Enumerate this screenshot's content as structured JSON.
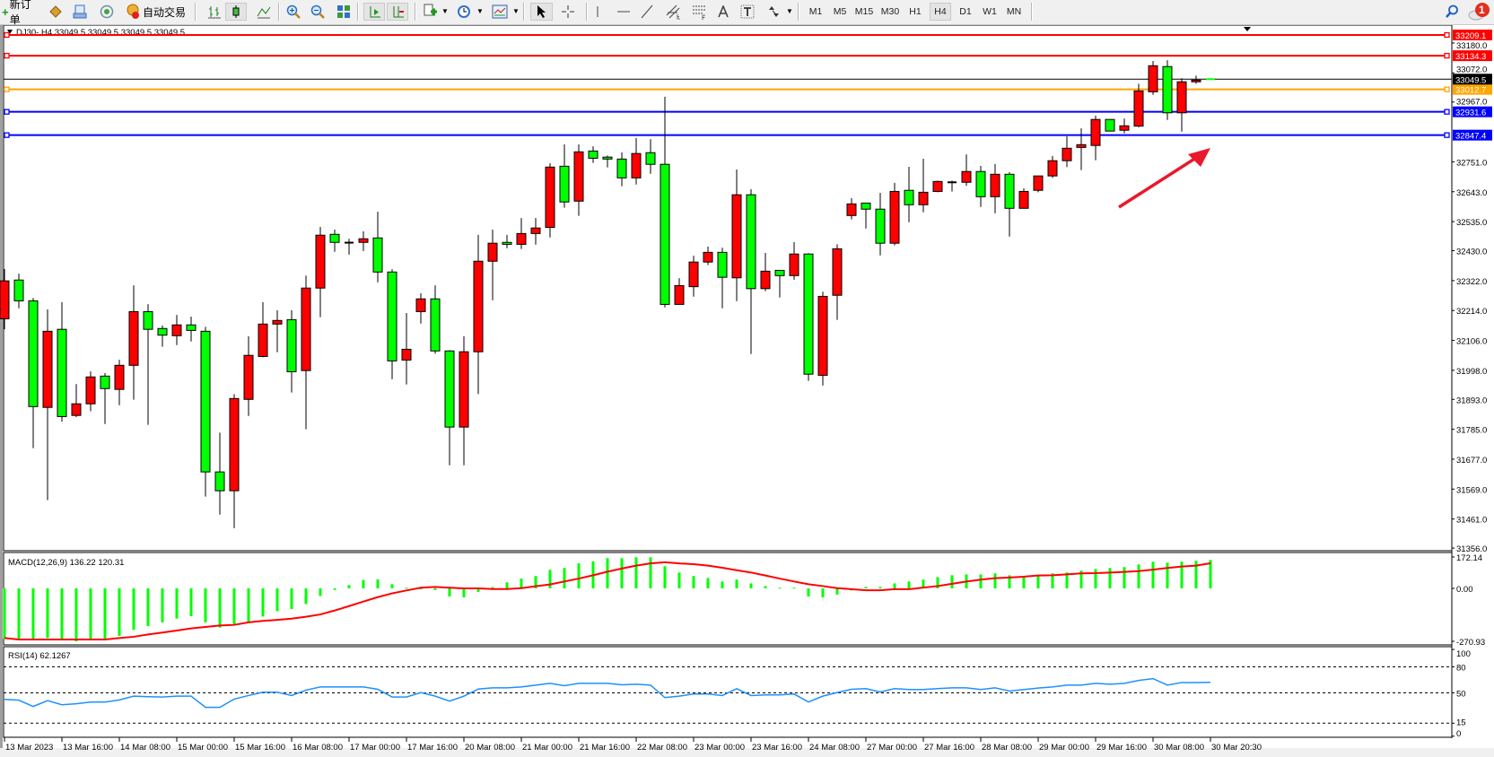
{
  "toolbar": {
    "new_order": "新订单",
    "auto_trading": "自动交易",
    "periods": [
      "M1",
      "M5",
      "M15",
      "M30",
      "H1",
      "H4",
      "D1",
      "W1",
      "MN"
    ],
    "active_period": "H4",
    "notification_count": "1",
    "icons": [
      "new-order-icon",
      "expert-diamond-icon",
      "terminal-icon",
      "signals-icon",
      "auto-trading-icon",
      "bar-chart-icon",
      "candlestick-icon",
      "line-chart-icon",
      "zoom-in-icon",
      "zoom-out-icon",
      "tile-windows-icon",
      "chart-shift-icon",
      "autoscroll-icon",
      "indicators-icon",
      "periods-clock-icon",
      "templates-icon",
      "cursor-icon",
      "crosshair-icon",
      "vertical-line-icon",
      "horizontal-line-icon",
      "trendline-icon",
      "channel-icon",
      "fibonacci-icon",
      "text-icon",
      "text-label-icon",
      "arrows-icon",
      "search-icon",
      "notification-icon"
    ]
  },
  "chart": {
    "title": "DJ30-,H4  33049.5 33049.5 33049.5 33049.5",
    "colors": {
      "bull": "#ff0000",
      "bear": "#00ff00",
      "macd_hist": "#00ff00",
      "macd_signal": "#ff0000",
      "rsi": "#1e90ff",
      "annotation_arrow": "#e8192c"
    }
  },
  "chart_data": [
    {
      "type": "candlestick",
      "symbol": "DJ30-",
      "timeframe": "H4",
      "ylim": [
        31356.0,
        33209.1
      ],
      "yticks": [
        "33180.0",
        "33072.0",
        "32967.0",
        "32751.0",
        "32643.0",
        "32535.0",
        "32430.0",
        "32322.0",
        "32214.0",
        "32106.0",
        "31998.0",
        "31893.0",
        "31785.0",
        "31677.0",
        "31569.0",
        "31461.0",
        "31356.0"
      ],
      "xticks": [
        "13 Mar 2023",
        "13 Mar 16:00",
        "14 Mar 08:00",
        "15 Mar 00:00",
        "15 Mar 16:00",
        "16 Mar 08:00",
        "17 Mar 00:00",
        "17 Mar 16:00",
        "20 Mar 08:00",
        "21 Mar 00:00",
        "21 Mar 16:00",
        "22 Mar 08:00",
        "23 Mar 00:00",
        "23 Mar 16:00",
        "24 Mar 08:00",
        "27 Mar 00:00",
        "27 Mar 16:00",
        "28 Mar 08:00",
        "29 Mar 00:00",
        "29 Mar 16:00",
        "30 Mar 08:00",
        "30 Mar 20:30"
      ],
      "current_price": "33049.5",
      "hlines": [
        {
          "price": "33209.1",
          "color": "#ff0000"
        },
        {
          "price": "33134.3",
          "color": "#ff0000"
        },
        {
          "price": "33012.7",
          "color": "#ffa500"
        },
        {
          "price": "32931.6",
          "color": "#0000ff"
        },
        {
          "price": "32847.4",
          "color": "#0000ff"
        }
      ],
      "ohlc": [
        [
          32184,
          32364,
          32146,
          32321
        ],
        [
          32324,
          32347,
          32222,
          32249
        ],
        [
          32249,
          32259,
          31717,
          31867
        ],
        [
          31864,
          32218,
          31529,
          32139
        ],
        [
          32146,
          32244,
          31812,
          31831
        ],
        [
          31835,
          31948,
          31829,
          31877
        ],
        [
          31877,
          31994,
          31850,
          31974
        ],
        [
          31977,
          31988,
          31804,
          31932
        ],
        [
          31929,
          32036,
          31872,
          32016
        ],
        [
          32016,
          32305,
          31892,
          32210
        ],
        [
          32210,
          32237,
          31801,
          32146
        ],
        [
          32149,
          32160,
          32083,
          32125
        ],
        [
          32123,
          32198,
          32089,
          32162
        ],
        [
          32162,
          32192,
          32102,
          32142
        ],
        [
          32139,
          32155,
          31542,
          31631
        ],
        [
          31631,
          31773,
          31477,
          31563
        ],
        [
          31563,
          31912,
          31428,
          31896
        ],
        [
          31893,
          32121,
          31833,
          32052
        ],
        [
          32048,
          32244,
          32045,
          32165
        ],
        [
          32165,
          32215,
          32063,
          32178
        ],
        [
          32181,
          32215,
          31918,
          31993
        ],
        [
          31997,
          32340,
          31785,
          32295
        ],
        [
          32295,
          32516,
          32190,
          32486
        ],
        [
          32489,
          32506,
          32426,
          32460
        ],
        [
          32459,
          32473,
          32416,
          32459
        ],
        [
          32460,
          32500,
          32429,
          32473
        ],
        [
          32476,
          32571,
          32316,
          32353
        ],
        [
          32353,
          32363,
          31966,
          32032
        ],
        [
          32035,
          32205,
          31947,
          32074
        ],
        [
          32210,
          32276,
          32167,
          32256
        ],
        [
          32256,
          32305,
          32058,
          32068
        ],
        [
          32068,
          32071,
          31655,
          31793
        ],
        [
          31793,
          32121,
          31655,
          32065
        ],
        [
          32065,
          32487,
          31912,
          32392
        ],
        [
          32392,
          32506,
          32251,
          32457
        ],
        [
          32460,
          32487,
          32439,
          32453
        ],
        [
          32453,
          32548,
          32436,
          32492
        ],
        [
          32492,
          32548,
          32452,
          32512
        ],
        [
          32514,
          32746,
          32478,
          32732
        ],
        [
          32735,
          32814,
          32585,
          32606
        ],
        [
          32609,
          32814,
          32556,
          32787
        ],
        [
          32790,
          32807,
          32747,
          32764
        ],
        [
          32768,
          32774,
          32731,
          32761
        ],
        [
          32761,
          32785,
          32663,
          32693
        ],
        [
          32693,
          32837,
          32669,
          32781
        ],
        [
          32784,
          32833,
          32708,
          32742
        ],
        [
          32742,
          32986,
          32225,
          32236
        ],
        [
          32236,
          32331,
          32236,
          32304
        ],
        [
          32300,
          32412,
          32264,
          32389
        ],
        [
          32389,
          32445,
          32378,
          32424
        ],
        [
          32424,
          32441,
          32222,
          32334
        ],
        [
          32332,
          32723,
          32248,
          32632
        ],
        [
          32632,
          32652,
          32057,
          32293
        ],
        [
          32293,
          32422,
          32284,
          32356
        ],
        [
          32359,
          32359,
          32261,
          32340
        ],
        [
          32340,
          32461,
          32325,
          32418
        ],
        [
          32418,
          32421,
          31960,
          31984
        ],
        [
          31980,
          32282,
          31943,
          32265
        ],
        [
          32269,
          32453,
          32180,
          32437
        ],
        [
          32557,
          32620,
          32543,
          32599
        ],
        [
          32602,
          32602,
          32510,
          32580
        ],
        [
          32580,
          32639,
          32413,
          32457
        ],
        [
          32457,
          32675,
          32449,
          32644
        ],
        [
          32648,
          32733,
          32533,
          32596
        ],
        [
          32596,
          32762,
          32569,
          32641
        ],
        [
          32644,
          32683,
          32641,
          32680
        ],
        [
          32677,
          32683,
          32644,
          32677
        ],
        [
          32677,
          32778,
          32664,
          32716
        ],
        [
          32716,
          32736,
          32588,
          32625
        ],
        [
          32625,
          32743,
          32565,
          32706
        ],
        [
          32706,
          32714,
          32481,
          32583
        ],
        [
          32583,
          32655,
          32583,
          32644
        ],
        [
          32648,
          32700,
          32641,
          32700
        ],
        [
          32700,
          32772,
          32693,
          32755
        ],
        [
          32755,
          32843,
          32732,
          32800
        ],
        [
          32803,
          32872,
          32721,
          32813
        ],
        [
          32810,
          32918,
          32757,
          32904
        ],
        [
          32904,
          32904,
          32862,
          32862
        ],
        [
          32865,
          32907,
          32854,
          32881
        ],
        [
          32880,
          33033,
          32876,
          33007
        ],
        [
          33004,
          33115,
          32993,
          33098
        ],
        [
          33095,
          33118,
          32902,
          32928
        ],
        [
          32928,
          33053,
          32860,
          33040
        ],
        [
          33040,
          33062,
          33033,
          33046
        ],
        [
          33049.5,
          33049.5,
          33049.5,
          33049.5
        ]
      ]
    },
    {
      "type": "bar+line",
      "title": "MACD(12,26,9) 136.22 120.31",
      "ylim": [
        -270.93,
        172.14
      ],
      "yticks": [
        "172.14",
        "0.00",
        "-270.93"
      ],
      "histogram": [
        -242,
        -242,
        -242,
        -238,
        -242,
        -254,
        -242,
        -242,
        -228,
        -199,
        -181,
        -163,
        -145,
        -133,
        -163,
        -188,
        -171,
        -162,
        -135,
        -109,
        -99,
        -75,
        -36,
        -7,
        16,
        40,
        43,
        20,
        3,
        0,
        -8,
        -39,
        -43,
        -17,
        6,
        29,
        47,
        59,
        89,
        98,
        120,
        130,
        145,
        145,
        149,
        149,
        106,
        76,
        59,
        50,
        33,
        42,
        24,
        11,
        3,
        3,
        -39,
        -43,
        -30,
        -10,
        7,
        7,
        24,
        33,
        42,
        54,
        63,
        67,
        67,
        72,
        63,
        59,
        63,
        72,
        76,
        85,
        93,
        98,
        102,
        115,
        128,
        123,
        128,
        132,
        136.22
      ],
      "signal": [
        -238,
        -245,
        -245,
        -245,
        -245,
        -245,
        -245,
        -245,
        -238,
        -232,
        -221,
        -212,
        -202,
        -192,
        -185,
        -178,
        -175,
        -163,
        -156,
        -151,
        -145,
        -136,
        -125,
        -106,
        -85,
        -63,
        -42,
        -24,
        -10,
        3,
        7,
        3,
        0,
        0,
        -3,
        -3,
        1,
        10,
        19,
        33,
        47,
        63,
        80,
        95,
        109,
        120,
        125,
        120,
        116,
        109,
        99,
        87,
        76,
        62,
        47,
        33,
        20,
        11,
        1,
        -4,
        -9,
        -9,
        -4,
        -4,
        4,
        11,
        22,
        33,
        42,
        49,
        52,
        56,
        62,
        63,
        67,
        72,
        73,
        76,
        79,
        83,
        90,
        98,
        105,
        109,
        120.31
      ]
    },
    {
      "type": "line",
      "title": "RSI(14) 62.1267",
      "ylim": [
        0,
        100
      ],
      "levels": [
        80,
        50,
        15
      ],
      "yticks": [
        "100",
        "80",
        "50",
        "15",
        "0"
      ],
      "values": [
        42.5,
        41.5,
        34.3,
        41,
        36.3,
        37.4,
        39.4,
        39.4,
        41.8,
        46.2,
        45.6,
        45.2,
        46.2,
        46.2,
        33.3,
        33.3,
        42.8,
        46.9,
        50.7,
        50.7,
        46.9,
        53.1,
        56.8,
        56.8,
        56.8,
        56.8,
        54.1,
        45.2,
        45.2,
        50.3,
        46.2,
        40.4,
        46.2,
        54.4,
        55.8,
        55.8,
        56.8,
        58.9,
        60.9,
        58.2,
        60.9,
        60.9,
        60.9,
        59.2,
        59.9,
        58.9,
        44.5,
        46.2,
        48.6,
        48.6,
        46.9,
        54.8,
        46.9,
        47.6,
        47.6,
        48.6,
        39.4,
        46.2,
        50.3,
        54.1,
        54.8,
        51,
        54.8,
        53.8,
        53.8,
        54.8,
        55.8,
        55.8,
        53.8,
        55.8,
        52,
        53.8,
        55.5,
        56.8,
        58.9,
        58.9,
        60.9,
        59.9,
        60.9,
        64.3,
        66.4,
        58.9,
        61.9,
        61.9,
        62.13
      ]
    }
  ]
}
